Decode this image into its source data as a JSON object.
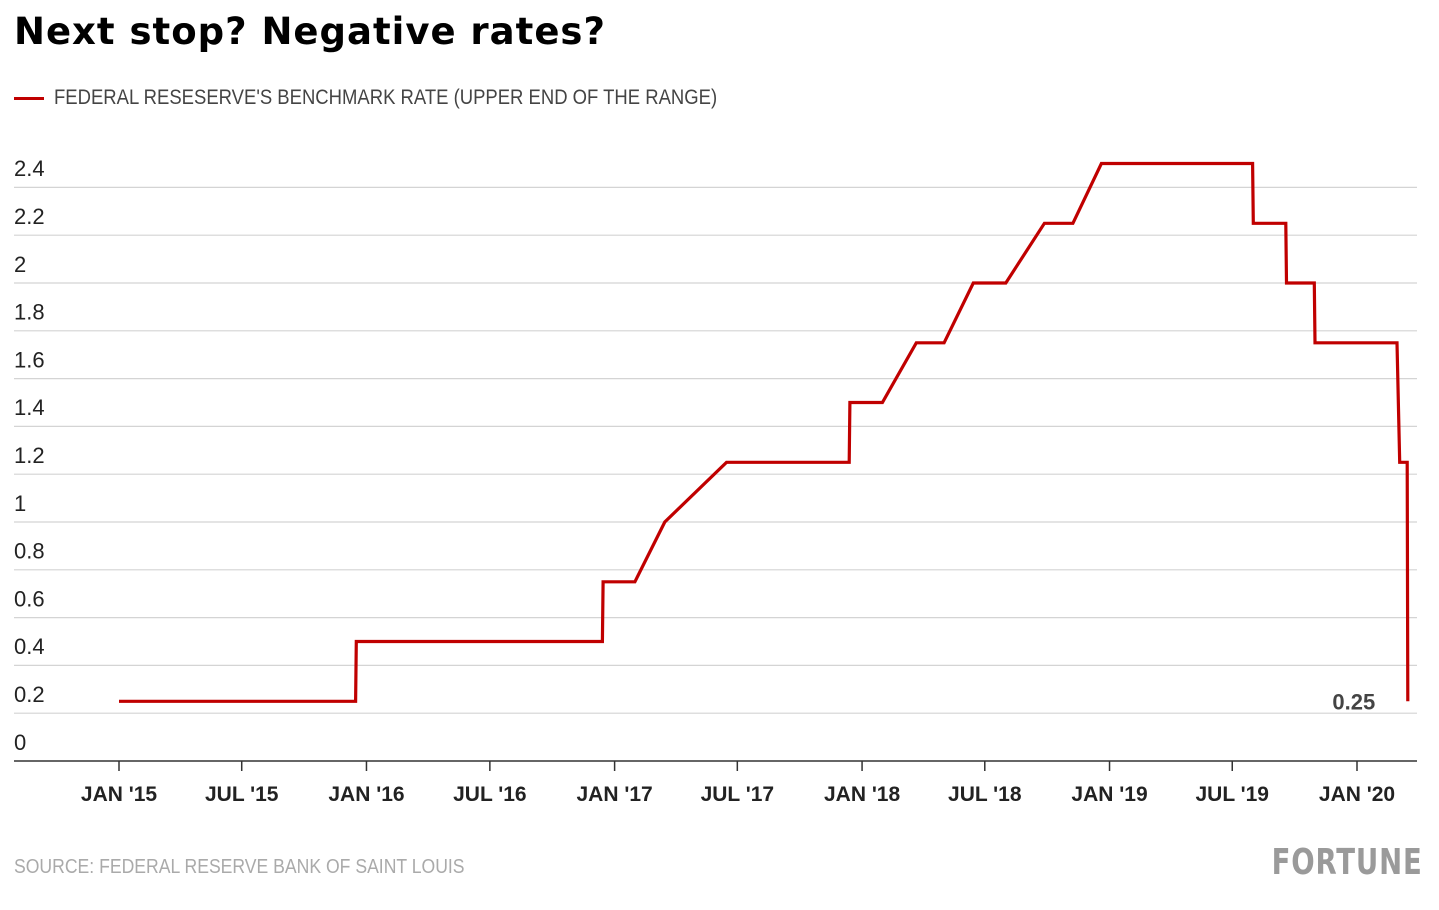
{
  "chart_data": {
    "type": "line",
    "title": "Next stop? Negative rates?",
    "series": [
      {
        "name": "FEDERAL RESESERVE'S BENCHMARK RATE (UPPER END OF THE RANGE)",
        "color": "#c00000",
        "points": [
          [
            "2015-01-01",
            0.25
          ],
          [
            "2015-12-16",
            0.25
          ],
          [
            "2015-12-17",
            0.5
          ],
          [
            "2016-12-14",
            0.5
          ],
          [
            "2016-12-15",
            0.75
          ],
          [
            "2017-01-31",
            0.75
          ],
          [
            "2017-03-16",
            1.0
          ],
          [
            "2017-06-15",
            1.25
          ],
          [
            "2017-12-13",
            1.25
          ],
          [
            "2017-12-14",
            1.5
          ],
          [
            "2018-01-31",
            1.5
          ],
          [
            "2018-03-22",
            1.75
          ],
          [
            "2018-05-02",
            1.75
          ],
          [
            "2018-06-14",
            2.0
          ],
          [
            "2018-08-01",
            2.0
          ],
          [
            "2018-09-27",
            2.25
          ],
          [
            "2018-11-08",
            2.25
          ],
          [
            "2018-12-20",
            2.5
          ],
          [
            "2019-07-31",
            2.5
          ],
          [
            "2019-08-01",
            2.25
          ],
          [
            "2019-09-18",
            2.25
          ],
          [
            "2019-09-19",
            2.0
          ],
          [
            "2019-10-30",
            2.0
          ],
          [
            "2019-10-31",
            1.75
          ],
          [
            "2020-02-29",
            1.75
          ],
          [
            "2020-03-04",
            1.25
          ],
          [
            "2020-03-15",
            1.25
          ],
          [
            "2020-03-16",
            0.25
          ]
        ]
      }
    ],
    "ylim": [
      0,
      2.6
    ],
    "y_ticks": [
      0,
      0.2,
      0.4,
      0.6,
      0.8,
      1,
      1.2,
      1.4,
      1.6,
      1.8,
      2,
      2.2,
      2.4
    ],
    "y_tick_labels": [
      "0",
      "0.2",
      "0.4",
      "0.6",
      "0.8",
      "1",
      "1.2",
      "1.4",
      "1.6",
      "1.8",
      "2",
      "2.2",
      "2.4"
    ],
    "x_ticks": [
      {
        "date": "2015-01-01",
        "label": "JAN '15"
      },
      {
        "date": "2015-07-01",
        "label": "JUL '15"
      },
      {
        "date": "2016-01-01",
        "label": "JAN '16"
      },
      {
        "date": "2016-07-01",
        "label": "JUL '16"
      },
      {
        "date": "2017-01-01",
        "label": "JAN '17"
      },
      {
        "date": "2017-07-01",
        "label": "JUL '17"
      },
      {
        "date": "2018-01-01",
        "label": "JAN '18"
      },
      {
        "date": "2018-07-01",
        "label": "JUL '18"
      },
      {
        "date": "2019-01-01",
        "label": "JAN '19"
      },
      {
        "date": "2019-07-01",
        "label": "JUL '19"
      },
      {
        "date": "2020-01-01",
        "label": "JAN '20"
      }
    ],
    "annotations": [
      {
        "date": "2020-03-16",
        "value": 0.25,
        "text": "0.25"
      }
    ],
    "grid": true,
    "legend_placement": "top-left"
  },
  "source": "SOURCE: FEDERAL RESERVE BANK OF SAINT LOUIS",
  "logo": "FORTUNE"
}
